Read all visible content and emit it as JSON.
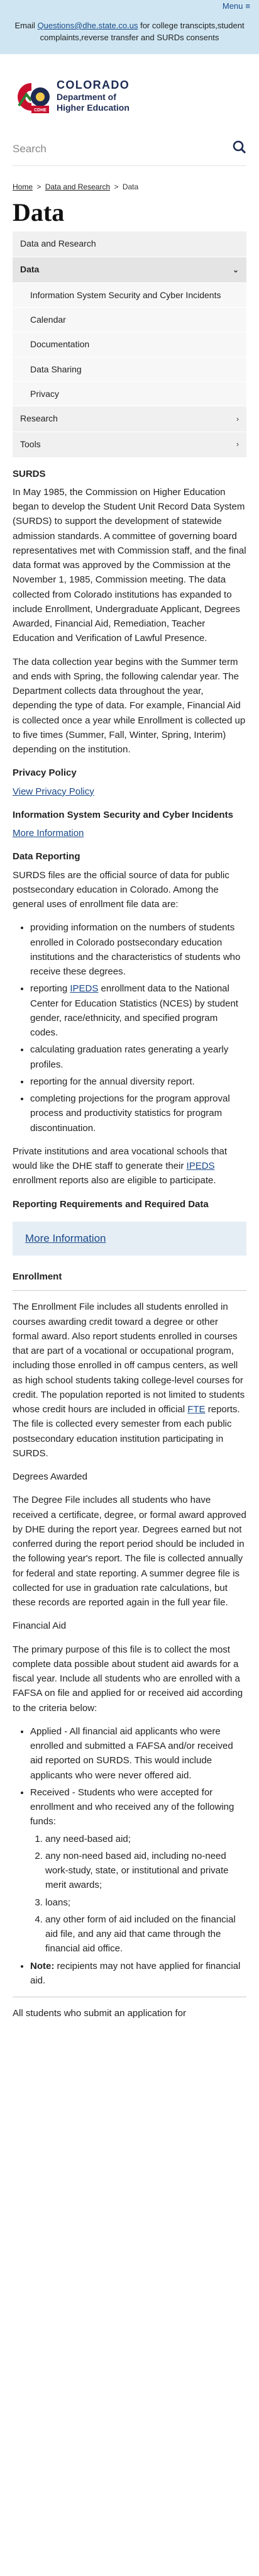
{
  "topbar": {
    "menu_label": "Menu"
  },
  "alert": {
    "prefix": "Email ",
    "email": "Questions@dhe.state.co.us",
    "suffix": " for college transcipts,student complaints,reverse transfer and SURDs consents"
  },
  "logo": {
    "line1": "COLORADO",
    "line2": "Department of",
    "line3": "Higher Education",
    "badge": "CDHE"
  },
  "search": {
    "placeholder": "Search"
  },
  "breadcrumb": {
    "home": "Home",
    "data_research": "Data and Research",
    "current": "Data",
    "separator": ">"
  },
  "page": {
    "title": "Data"
  },
  "sidenav": {
    "top": "Data and Research",
    "active": "Data",
    "subitems": [
      "Information System Security and Cyber Incidents",
      "Calendar",
      "Documentation",
      "Data Sharing",
      "Privacy"
    ],
    "research": "Research",
    "tools": "Tools"
  },
  "surds": {
    "heading": "SURDS",
    "p1": "In May 1985, the Commission on Higher Education began to develop the Student Unit Record Data System (SURDS) to support the development of statewide admission standards. A committee of governing board representatives met with Commission staff, and the final data format was approved by the Commission at the November 1, 1985, Commission meeting. The data collected from Colorado institutions has expanded to include Enrollment, Undergraduate Applicant, Degrees Awarded, Financial Aid, Remediation, Teacher Education and Verification of Lawful Presence.",
    "p2": "The data collection year begins with the Summer term and ends with Spring, the following calendar year. The Department collects data throughout the year, depending the type of data. For example, Financial Aid is collected once a year while Enrollment is collected up to five times (Summer, Fall, Winter, Spring, Interim) depending on the institution."
  },
  "privacy": {
    "heading": "Privacy Policy",
    "link": "View Privacy Policy"
  },
  "security": {
    "heading": "Information System Security and Cyber Incidents",
    "link": "More Information"
  },
  "reporting": {
    "heading": "Data Reporting",
    "intro": "SURDS files are the official source of data for public postsecondary education in Colorado. Among the general uses of enrollment file data are:",
    "bullets": [
      "providing information on the numbers of students enrolled in Colorado postsecondary education institutions and the characteristics of students who receive these degrees.",
      "reporting",
      "calculating graduation rates generating a yearly profiles.",
      "reporting for the annual diversity report.",
      "completing projections for the program approval process and productivity statistics for program discontinuation."
    ],
    "ipeds_link": "IPEDS",
    "ipeds_bullet_rest": " enrollment data to the National Center for Education Statistics (NCES) by student gender, race/ethnicity, and specified program codes.",
    "private_pre": "Private institutions and area vocational schools that would like the DHE staff to generate their ",
    "private_post": " enrollment reports also are eligible to participate."
  },
  "requirements": {
    "heading": "Reporting Requirements and Required Data",
    "link": "More Information"
  },
  "enrollment": {
    "heading": "Enrollment",
    "p_pre": "The Enrollment File includes all students enrolled in courses awarding credit toward a degree or other formal award. Also report students enrolled in courses that are part of a vocational or occupational program, including those enrolled in off campus centers, as well as high school students taking college-level courses for credit. The population reported is not limited to students whose credit hours are included in official ",
    "fte": "FTE",
    "p_post": " reports. The file is collected every semester from each public postsecondary education institution participating in SURDS."
  },
  "degrees": {
    "heading": "Degrees Awarded",
    "p": "The Degree File includes all students who have received a certificate, degree, or formal award approved by DHE during the report year. Degrees earned but not conferred during the report period should be included in the following year's report. The file is collected annually for federal and state reporting. A summer degree file is collected for use in graduation rate calculations, but these records are reported again in the full year file."
  },
  "finaid": {
    "heading": "Financial Aid",
    "p": "The primary purpose of this file is to collect the most complete data possible about student aid awards for a fiscal year. Include all students who are enrolled with a FAFSA on file and applied for or received aid according to the criteria below:",
    "applied_label": "Applied",
    "applied_text": " - All financial aid applicants who were enrolled and submitted a FAFSA and/or received aid reported on SURDS. This would include applicants who were never offered aid.",
    "received_label": "Received",
    "received_text": " - Students who were accepted for enrollment and who received any of the following funds:",
    "funds": [
      "any need-based aid;",
      "any non-need based aid, including no-need work-study, state, or institutional and private merit awards;",
      "loans;",
      "any other form of aid included on the financial aid file, and any aid that came through the financial aid office."
    ],
    "note_label": "Note:",
    "note_text": " recipients may not have applied for financial aid.",
    "closing": "All students who submit an application for"
  },
  "colors": {
    "accent": "#1a4a8a",
    "alert_bg": "#cfe6f2",
    "nav_bg": "#f0f0f0",
    "info_box": "#e6eef5"
  }
}
